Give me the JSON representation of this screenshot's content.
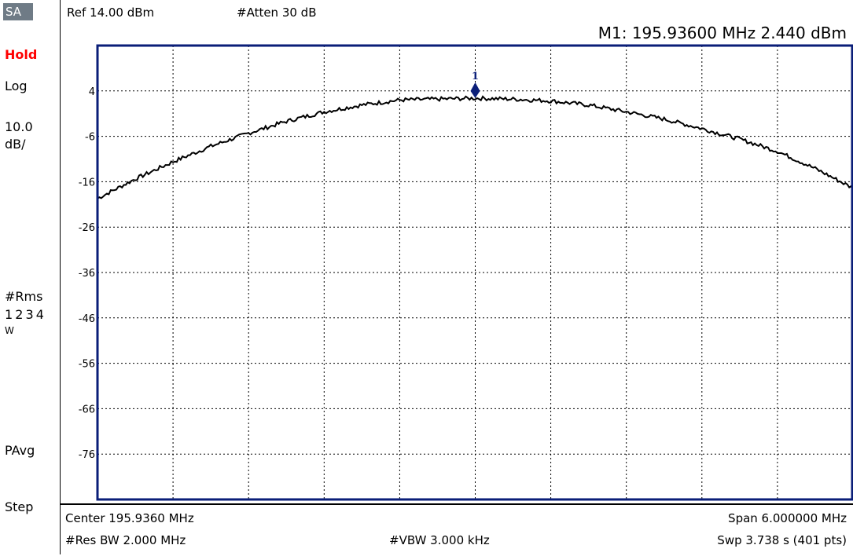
{
  "left_panel": {
    "mode_badge": "SA",
    "hold_label": "Hold",
    "scale_type": "Log",
    "scale_value": "10.0",
    "scale_unit": "dB/",
    "detector": "#Rms",
    "traces": "1 2 3 4",
    "trace_mode": "W",
    "avg_type": "PAvg",
    "step_label": "Step"
  },
  "header": {
    "ref_level": "Ref 14.00 dBm",
    "attenuation": "#Atten 30 dB",
    "marker_readout": "M1:  195.93600 MHz   2.440 dBm"
  },
  "footer": {
    "center": "Center 195.9360 MHz",
    "span": "Span 6.000000 MHz",
    "res_bw": "#Res BW 2.000 MHz",
    "vbw": "#VBW 3.000 kHz",
    "sweep": "Swp 3.738  s (401 pts)"
  },
  "colors": {
    "frame": "#0a1e78",
    "trace": "#000000",
    "marker": "#0a1e78",
    "grid": "#000000",
    "hold_text": "#ff0000"
  },
  "chart_data": {
    "type": "line",
    "title": "",
    "xlabel": "",
    "ylabel": "",
    "x_unit": "MHz",
    "y_unit": "dBm",
    "xlim": [
      192.936,
      198.936
    ],
    "ylim": [
      -86,
      14
    ],
    "y_ticks": [
      4,
      -6,
      -16,
      -26,
      -36,
      -46,
      -56,
      -66,
      -76
    ],
    "grid": true,
    "series": [
      {
        "x": [
          192.936,
          193.236,
          193.536,
          193.836,
          194.136,
          194.436,
          194.736,
          195.036,
          195.336,
          195.636,
          195.936,
          196.236,
          196.536,
          196.836,
          197.136,
          197.436,
          197.736,
          198.036,
          198.336,
          198.636,
          198.936
        ],
        "y": [
          -19.7,
          -15.4,
          -11.6,
          -8.2,
          -5.3,
          -2.7,
          -0.6,
          0.9,
          2.0,
          2.2,
          2.4,
          2.2,
          1.8,
          0.9,
          -0.6,
          -2.2,
          -4.3,
          -6.6,
          -9.3,
          -13.1,
          -17.4
        ]
      }
    ],
    "markers": [
      {
        "label": "1",
        "x": 195.936,
        "y": 2.44
      }
    ]
  }
}
